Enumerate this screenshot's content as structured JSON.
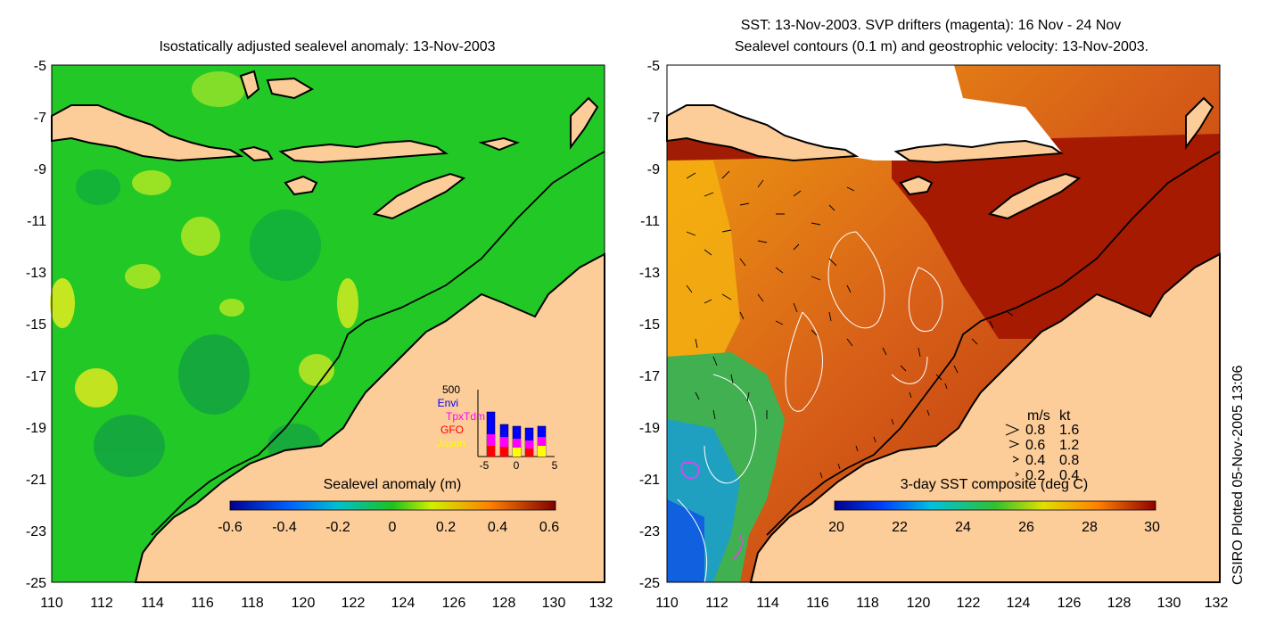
{
  "left_panel": {
    "title": "Isostatically adjusted sealevel anomaly: 13-Nov-2003",
    "y_ticks": [
      "-5",
      "-7",
      "-9",
      "-11",
      "-13",
      "-15",
      "-17",
      "-19",
      "-21",
      "-23",
      "-25"
    ],
    "x_ticks": [
      "110",
      "112",
      "114",
      "116",
      "118",
      "120",
      "122",
      "124",
      "126",
      "128",
      "130",
      "132"
    ],
    "colorbar": {
      "label": "Sealevel anomaly (m)",
      "ticks": [
        "-0.6",
        "-0.4",
        "-0.2",
        "0",
        "0.2",
        "0.4",
        "0.6"
      ]
    },
    "inset": {
      "y_top_label": "500",
      "x_ticks": [
        "-5",
        "0",
        "5"
      ],
      "legend": [
        {
          "label": "Envi",
          "color": "#0000ff"
        },
        {
          "label": "TpxTdm",
          "color": "#ff00ff"
        },
        {
          "label": "GFO",
          "color": "#ff0000"
        },
        {
          "label": "Jason",
          "color": "#ffff00"
        }
      ]
    }
  },
  "right_panel": {
    "title_line1": "SST: 13-Nov-2003. SVP drifters (magenta): 16 Nov - 24 Nov",
    "title_line2": "Sealevel contours (0.1 m) and geostrophic velocity: 13-Nov-2003.",
    "y_ticks": [
      "-5",
      "-7",
      "-9",
      "-11",
      "-13",
      "-15",
      "-17",
      "-19",
      "-21",
      "-23",
      "-25"
    ],
    "x_ticks": [
      "110",
      "112",
      "114",
      "116",
      "118",
      "120",
      "122",
      "124",
      "126",
      "128",
      "130",
      "132"
    ],
    "colorbar": {
      "label": "3-day SST composite (deg C)",
      "ticks": [
        "20",
        "22",
        "24",
        "26",
        "28",
        "30"
      ]
    },
    "velocity_legend": {
      "header_ms": "m/s",
      "header_kt": "kt",
      "rows": [
        {
          "ms": "0.8",
          "kt": "1.6"
        },
        {
          "ms": "0.6",
          "kt": "1.2"
        },
        {
          "ms": "0.4",
          "kt": "0.8"
        },
        {
          "ms": "0.2",
          "kt": "0.4"
        }
      ]
    }
  },
  "credit": "CSIRO Plotted 05-Nov-2005 13:06",
  "colors": {
    "land": "#fccc99",
    "sea_green": "#22c826",
    "sst_red": "#a51a00",
    "sst_orange": "#e06a10"
  }
}
